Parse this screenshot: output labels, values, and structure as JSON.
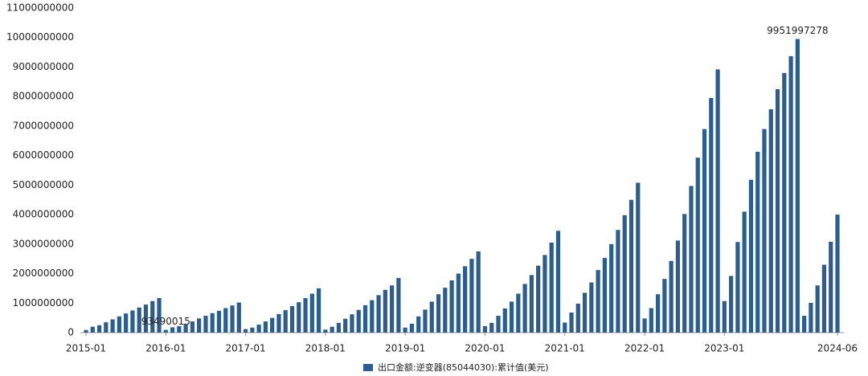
{
  "chart_data": {
    "type": "bar",
    "categories": [
      "2015-01",
      null,
      null,
      null,
      null,
      null,
      null,
      null,
      null,
      null,
      null,
      null,
      "2016-01",
      null,
      null,
      null,
      null,
      null,
      null,
      null,
      null,
      null,
      null,
      null,
      "2017-01",
      null,
      null,
      null,
      null,
      null,
      null,
      null,
      null,
      null,
      null,
      null,
      "2018-01",
      null,
      null,
      null,
      null,
      null,
      null,
      null,
      null,
      null,
      null,
      null,
      "2019-01",
      null,
      null,
      null,
      null,
      null,
      null,
      null,
      null,
      null,
      null,
      null,
      "2020-01",
      null,
      null,
      null,
      null,
      null,
      null,
      null,
      null,
      null,
      null,
      null,
      "2021-01",
      null,
      null,
      null,
      null,
      null,
      null,
      null,
      null,
      null,
      null,
      null,
      "2022-01",
      null,
      null,
      null,
      null,
      null,
      null,
      null,
      null,
      null,
      null,
      null,
      "2023-01",
      null,
      null,
      null,
      null,
      null,
      null,
      null,
      null,
      null,
      null,
      null,
      null,
      null,
      null,
      null,
      null,
      "2024-06"
    ],
    "series": [
      {
        "name": "出口金额:逆变器(85044030):累计值(美元)",
        "color": "#2b5d8e",
        "values": [
          90000000,
          200000000,
          250000000,
          350000000,
          450000000,
          550000000,
          650000000,
          750000000,
          850000000,
          950000000,
          1070000000,
          1170000000,
          93490015,
          180000000,
          220000000,
          300000000,
          380000000,
          480000000,
          570000000,
          660000000,
          740000000,
          830000000,
          920000000,
          1020000000,
          120000000,
          170000000,
          270000000,
          380000000,
          500000000,
          630000000,
          760000000,
          900000000,
          1030000000,
          1170000000,
          1320000000,
          1500000000,
          100000000,
          200000000,
          330000000,
          470000000,
          620000000,
          770000000,
          930000000,
          1100000000,
          1270000000,
          1450000000,
          1600000000,
          1850000000,
          170000000,
          300000000,
          550000000,
          780000000,
          1050000000,
          1300000000,
          1520000000,
          1770000000,
          2000000000,
          2250000000,
          2500000000,
          2750000000,
          220000000,
          330000000,
          570000000,
          820000000,
          1050000000,
          1320000000,
          1650000000,
          1950000000,
          2270000000,
          2630000000,
          3050000000,
          3450000000,
          340000000,
          680000000,
          980000000,
          1350000000,
          1700000000,
          2120000000,
          2530000000,
          3000000000,
          3480000000,
          3980000000,
          4500000000,
          5080000000,
          480000000,
          830000000,
          1300000000,
          1820000000,
          2430000000,
          3120000000,
          4020000000,
          4970000000,
          5930000000,
          6900000000,
          7950000000,
          8920000000,
          1070000000,
          1920000000,
          3070000000,
          4100000000,
          5180000000,
          6130000000,
          6900000000,
          7570000000,
          8250000000,
          8800000000,
          9370000000,
          9951997278,
          570000000,
          1010000000,
          1600000000,
          2300000000,
          3080000000,
          4000000000
        ],
        "value_labels": [
          null,
          null,
          null,
          null,
          null,
          null,
          null,
          null,
          null,
          null,
          null,
          null,
          "93490015",
          null,
          null,
          null,
          null,
          null,
          null,
          null,
          null,
          null,
          null,
          null,
          null,
          null,
          null,
          null,
          null,
          null,
          null,
          null,
          null,
          null,
          null,
          null,
          null,
          null,
          null,
          null,
          null,
          null,
          null,
          null,
          null,
          null,
          null,
          null,
          null,
          null,
          null,
          null,
          null,
          null,
          null,
          null,
          null,
          null,
          null,
          null,
          null,
          null,
          null,
          null,
          null,
          null,
          null,
          null,
          null,
          null,
          null,
          null,
          null,
          null,
          null,
          null,
          null,
          null,
          null,
          null,
          null,
          null,
          null,
          null,
          null,
          null,
          null,
          null,
          null,
          null,
          null,
          null,
          null,
          null,
          null,
          null,
          null,
          null,
          null,
          null,
          null,
          null,
          null,
          null,
          null,
          null,
          null,
          "9951997278",
          null,
          null,
          null,
          null,
          null,
          null
        ]
      }
    ],
    "ylim": [
      0,
      11000000000
    ],
    "yticks": [
      0,
      1000000000,
      2000000000,
      3000000000,
      4000000000,
      5000000000,
      6000000000,
      7000000000,
      8000000000,
      9000000000,
      10000000000,
      11000000000
    ],
    "legend": "bottom"
  }
}
